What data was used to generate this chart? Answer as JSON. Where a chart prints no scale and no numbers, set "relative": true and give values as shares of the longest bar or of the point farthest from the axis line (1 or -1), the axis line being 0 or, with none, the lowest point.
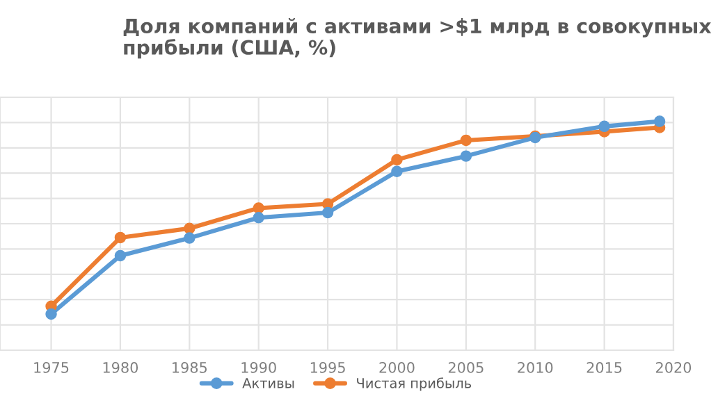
{
  "chart_data": {
    "type": "line",
    "title": "Доля компаний с активами >$1 млрд в совокупных\nприбыли (США, %)",
    "relative": true,
    "x": [
      1975,
      1980,
      1985,
      1990,
      1995,
      2000,
      2005,
      2010,
      2015,
      2019
    ],
    "xlim": [
      1971.3,
      2020
    ],
    "xticks": [
      1975,
      1980,
      1985,
      1990,
      1995,
      2000,
      2005,
      2010,
      2015,
      2020
    ],
    "series": [
      {
        "name": "Активы",
        "color": "#5b9bd5",
        "values": [
          0.158,
          0.413,
          0.49,
          0.579,
          0.601,
          0.781,
          0.848,
          0.929,
          0.978,
          1
        ]
      },
      {
        "name": "Чистая прибыль",
        "color": "#ed7d31",
        "values": [
          0.192,
          0.492,
          0.532,
          0.621,
          0.639,
          0.832,
          0.917,
          0.935,
          0.955,
          0.973
        ]
      }
    ],
    "marker": "circle",
    "line_style": "solid",
    "grid": true,
    "legend": "bottom",
    "tick_labels": "x"
  }
}
